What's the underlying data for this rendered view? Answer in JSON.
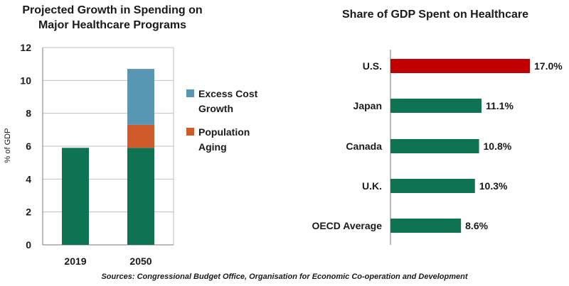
{
  "chart_data": [
    {
      "type": "bar",
      "stacked": true,
      "title_lines": [
        "Projected Growth in Spending on",
        "Major Healthcare Programs"
      ],
      "ylabel": "% of GDP",
      "ylim": [
        0,
        12
      ],
      "yticks": [
        0,
        2,
        4,
        6,
        8,
        10,
        12
      ],
      "grid": true,
      "categories": [
        "2019",
        "2050"
      ],
      "series": [
        {
          "name": "",
          "color": "#0e7352",
          "values": [
            5.9,
            5.9
          ]
        },
        {
          "name": "Population Aging",
          "legend_lines": [
            "Population",
            "Aging"
          ],
          "color": "#d05b2a",
          "values": [
            0,
            1.4
          ]
        },
        {
          "name": "Excess Cost Growth",
          "legend_lines": [
            "Excess Cost",
            "Growth"
          ],
          "color": "#5897b3",
          "values": [
            0,
            3.4
          ]
        }
      ],
      "legend_order": [
        2,
        1
      ],
      "legend_position": "right"
    },
    {
      "type": "bar",
      "orientation": "horizontal",
      "title": "Share of GDP Spent on Healthcare",
      "xlim": [
        0,
        17
      ],
      "categories": [
        "U.S.",
        "Japan",
        "Canada",
        "U.K.",
        "OECD Average"
      ],
      "values": [
        17.0,
        11.1,
        10.8,
        10.3,
        8.6
      ],
      "labels": [
        "17.0%",
        "11.1%",
        "10.8%",
        "10.3%",
        "8.6%"
      ],
      "colors": [
        "#c00000",
        "#0e7352",
        "#0e7352",
        "#0e7352",
        "#0e7352"
      ]
    }
  ],
  "footer": {
    "source": "Sources: Congressional Budget Office, Organisation for Economic Co-operation and Development"
  }
}
